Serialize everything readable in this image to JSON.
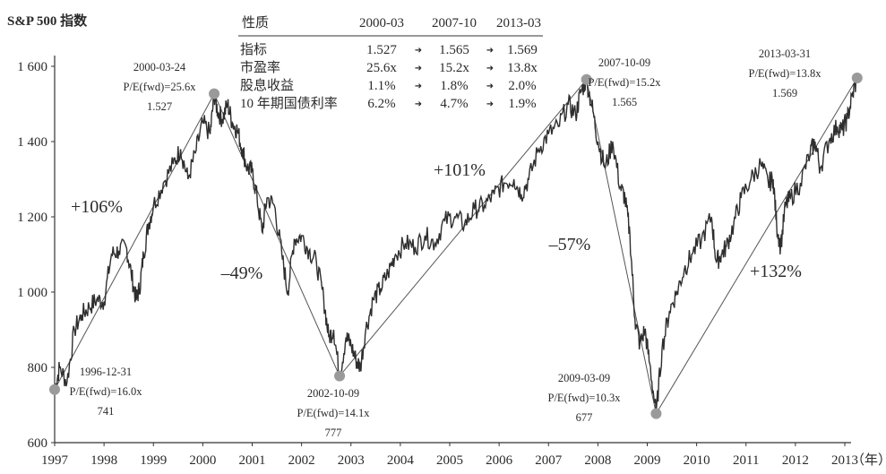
{
  "chart_data": {
    "type": "line",
    "title": "S&P 500 指数",
    "xlabel": "（年）",
    "ylabel": "",
    "x_ticks": [
      "1997",
      "1998",
      "1999",
      "2000",
      "2001",
      "2002",
      "2003",
      "2004",
      "2005",
      "2006",
      "2007",
      "2008",
      "2009",
      "2010",
      "2011",
      "2012",
      "2013"
    ],
    "y_ticks": [
      "600",
      "800",
      "1 000",
      "1 200",
      "1 400",
      "1 600"
    ],
    "xlim": [
      1997.0,
      2013.4
    ],
    "ylim": [
      600,
      1650
    ],
    "series": [
      {
        "x": [
          1997.0,
          1997.1,
          1997.25,
          1997.4,
          1997.55,
          1997.7,
          1997.85,
          1998.0,
          1998.15,
          1998.3,
          1998.45,
          1998.55,
          1998.65,
          1998.72,
          1998.8,
          1998.9,
          1999.0,
          1999.2,
          1999.4,
          1999.55,
          1999.7,
          1999.85,
          2000.0,
          2000.15,
          2000.23,
          2000.3,
          2000.4,
          2000.5,
          2000.6,
          2000.7,
          2000.8,
          2000.9,
          2001.0,
          2001.1,
          2001.2,
          2001.3,
          2001.45,
          2001.6,
          2001.72,
          2001.85,
          2002.0,
          2002.15,
          2002.3,
          2002.45,
          2002.55,
          2002.65,
          2002.77,
          2002.9,
          2003.0,
          2003.1,
          2003.19,
          2003.3,
          2003.45,
          2003.6,
          2003.75,
          2003.9,
          2004.1,
          2004.3,
          2004.5,
          2004.7,
          2004.9,
          2005.1,
          2005.3,
          2005.5,
          2005.7,
          2005.9,
          2006.1,
          2006.3,
          2006.45,
          2006.6,
          2006.8,
          2007.0,
          2007.2,
          2007.4,
          2007.55,
          2007.65,
          2007.77,
          2007.9,
          2008.0,
          2008.15,
          2008.3,
          2008.45,
          2008.55,
          2008.65,
          2008.75,
          2008.85,
          2008.95,
          2009.05,
          2009.18,
          2009.3,
          2009.45,
          2009.6,
          2009.75,
          2009.9,
          2010.1,
          2010.3,
          2010.4,
          2010.5,
          2010.6,
          2010.75,
          2010.9,
          2011.1,
          2011.3,
          2011.45,
          2011.55,
          2011.62,
          2011.7,
          2011.8,
          2011.9,
          2012.1,
          2012.3,
          2012.4,
          2012.5,
          2012.7,
          2012.85,
          2012.95,
          2013.05,
          2013.15,
          2013.25
        ],
        "values": [
          741,
          800,
          760,
          900,
          940,
          960,
          980,
          975,
          1100,
          1110,
          1120,
          1050,
          980,
          1010,
          1100,
          1180,
          1230,
          1290,
          1340,
          1380,
          1300,
          1370,
          1450,
          1420,
          1527,
          1480,
          1460,
          1500,
          1450,
          1430,
          1380,
          1330,
          1320,
          1250,
          1160,
          1250,
          1230,
          1100,
          1000,
          1140,
          1150,
          1110,
          1080,
          980,
          880,
          900,
          777,
          880,
          860,
          820,
          800,
          900,
          980,
          1010,
          1050,
          1100,
          1130,
          1120,
          1150,
          1130,
          1190,
          1200,
          1180,
          1220,
          1230,
          1260,
          1290,
          1300,
          1260,
          1300,
          1380,
          1420,
          1440,
          1500,
          1470,
          1530,
          1565,
          1480,
          1400,
          1330,
          1400,
          1280,
          1250,
          1150,
          930,
          860,
          900,
          810,
          677,
          850,
          950,
          1000,
          1060,
          1100,
          1140,
          1200,
          1080,
          1100,
          1120,
          1180,
          1250,
          1300,
          1340,
          1290,
          1300,
          1180,
          1120,
          1230,
          1250,
          1290,
          1370,
          1400,
          1330,
          1410,
          1440,
          1430,
          1460,
          1520,
          1569
        ]
      }
    ],
    "peak_trough_labels": [
      {
        "date": "1996-12-31",
        "pe": "P/E(fwd)=16.0x",
        "level": "741",
        "x": 1997.0,
        "y": 741
      },
      {
        "date": "2000-03-24",
        "pe": "P/E(fwd)=25.6x",
        "level": "1.527",
        "x": 2000.23,
        "y": 1527
      },
      {
        "date": "2002-10-09",
        "pe": "P/E(fwd)=14.1x",
        "level": "777",
        "x": 2002.77,
        "y": 777
      },
      {
        "date": "2007-10-09",
        "pe": "P/E(fwd)=15.2x",
        "level": "1.565",
        "x": 2007.77,
        "y": 1565
      },
      {
        "date": "2009-03-09",
        "pe": "P/E(fwd)=10.3x",
        "level": "677",
        "x": 2009.18,
        "y": 677
      },
      {
        "date": "2013-03-31",
        "pe": "P/E(fwd)=13.8x",
        "level": "1.569",
        "x": 2013.25,
        "y": 1569
      }
    ],
    "trend_segments": [
      {
        "label": "+106%",
        "from": [
          1997.0,
          741
        ],
        "to": [
          2000.23,
          1527
        ]
      },
      {
        "label": "–49%",
        "from": [
          2000.23,
          1527
        ],
        "to": [
          2002.77,
          777
        ]
      },
      {
        "label": "+101%",
        "from": [
          2002.77,
          777
        ],
        "to": [
          2007.77,
          1565
        ]
      },
      {
        "label": "–57%",
        "from": [
          2007.77,
          1565
        ],
        "to": [
          2009.18,
          677
        ]
      },
      {
        "label": "+132%",
        "from": [
          2009.18,
          677
        ],
        "to": [
          2013.25,
          1569
        ]
      }
    ],
    "table": {
      "header": [
        "性质",
        "2000-03",
        "2007-10",
        "2013-03"
      ],
      "rows": [
        {
          "label": "指标",
          "values": [
            "1.527",
            "1.565",
            "1.569"
          ]
        },
        {
          "label": "市盈率",
          "values": [
            "25.6x",
            "15.2x",
            "13.8x"
          ]
        },
        {
          "label": "股息收益",
          "values": [
            "1.1%",
            "1.8%",
            "2.0%"
          ]
        },
        {
          "label": "10 年期国债利率",
          "values": [
            "6.2%",
            "4.7%",
            "1.9%"
          ]
        }
      ],
      "arrow": "➜"
    },
    "grid": false,
    "legend": "none",
    "colors": {
      "line": "#2e2e2e",
      "marker": "#9a9a9a",
      "trend": "#555555"
    }
  }
}
